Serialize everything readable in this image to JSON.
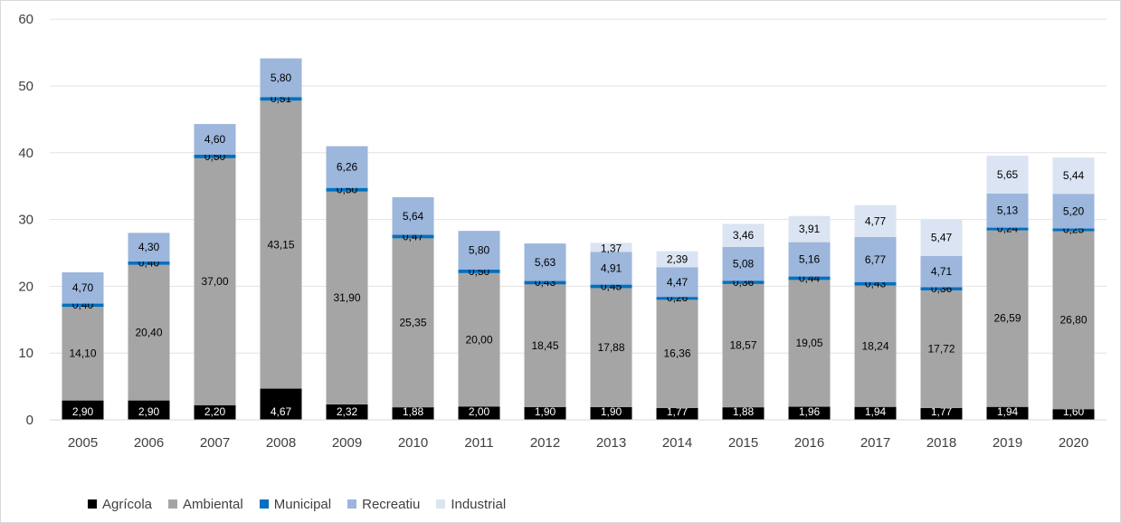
{
  "chart_data": {
    "type": "bar",
    "stacked": true,
    "categories": [
      "2005",
      "2006",
      "2007",
      "2008",
      "2009",
      "2010",
      "2011",
      "2012",
      "2013",
      "2014",
      "2015",
      "2016",
      "2017",
      "2018",
      "2019",
      "2020"
    ],
    "series": [
      {
        "name": "Agrícola",
        "color": "#000000",
        "values": [
          2.9,
          2.9,
          2.2,
          4.67,
          2.32,
          1.88,
          2.0,
          1.9,
          1.9,
          1.77,
          1.88,
          1.96,
          1.94,
          1.77,
          1.94,
          1.6
        ],
        "labels": [
          "2,90",
          "2,90",
          "2,20",
          "4,67",
          "2,32",
          "1,88",
          "2,00",
          "1,90",
          "1,90",
          "1,77",
          "1,88",
          "1,96",
          "1,94",
          "1,77",
          "1,94",
          "1,60"
        ]
      },
      {
        "name": "Ambiental",
        "color": "#a5a5a5",
        "values": [
          14.1,
          20.4,
          37.0,
          43.15,
          31.9,
          25.35,
          20.0,
          18.45,
          17.88,
          16.36,
          18.57,
          19.05,
          18.24,
          17.72,
          26.59,
          26.8
        ],
        "labels": [
          "14,10",
          "20,40",
          "37,00",
          "43,15",
          "31,90",
          "25,35",
          "20,00",
          "18,45",
          "17,88",
          "16,36",
          "18,57",
          "19,05",
          "18,24",
          "17,72",
          "26,59",
          "26,80"
        ]
      },
      {
        "name": "Municipal",
        "color": "#0070c0",
        "values": [
          0.4,
          0.4,
          0.5,
          0.51,
          0.5,
          0.47,
          0.5,
          0.43,
          0.45,
          0.26,
          0.36,
          0.44,
          0.43,
          0.36,
          0.24,
          0.25
        ],
        "labels": [
          "0,40",
          "0,40",
          "0,50",
          "0,51",
          "0,50",
          "0,47",
          "0,50",
          "0,43",
          "0,45",
          "0,26",
          "0,36",
          "0,44",
          "0,43",
          "0,36",
          "0,24",
          "0,25"
        ]
      },
      {
        "name": "Recreatiu",
        "color": "#9cb6dc",
        "values": [
          4.7,
          4.3,
          4.6,
          5.8,
          6.26,
          5.64,
          5.8,
          5.63,
          4.91,
          4.47,
          5.08,
          5.16,
          6.77,
          4.71,
          5.13,
          5.2
        ],
        "labels": [
          "4,70",
          "4,30",
          "4,60",
          "5,80",
          "6,26",
          "5,64",
          "5,80",
          "5,63",
          "4,91",
          "4,47",
          "5,08",
          "5,16",
          "6,77",
          "4,71",
          "5,13",
          "5,20"
        ]
      },
      {
        "name": "Industrial",
        "color": "#dbe4f2",
        "values": [
          0,
          0,
          0,
          0,
          0,
          0,
          0,
          0,
          1.37,
          2.39,
          3.46,
          3.91,
          4.77,
          5.47,
          5.65,
          5.44
        ],
        "labels": [
          "",
          "",
          "",
          "",
          "",
          "",
          "",
          "",
          "1,37",
          "2,39",
          "3,46",
          "3,91",
          "4,77",
          "5,47",
          "5,65",
          "5,44"
        ]
      }
    ],
    "yticks": [
      "0",
      "10",
      "20",
      "30",
      "40",
      "50",
      "60"
    ],
    "ylim": [
      0,
      60
    ],
    "grid": true,
    "legend_position": "bottom-left"
  }
}
